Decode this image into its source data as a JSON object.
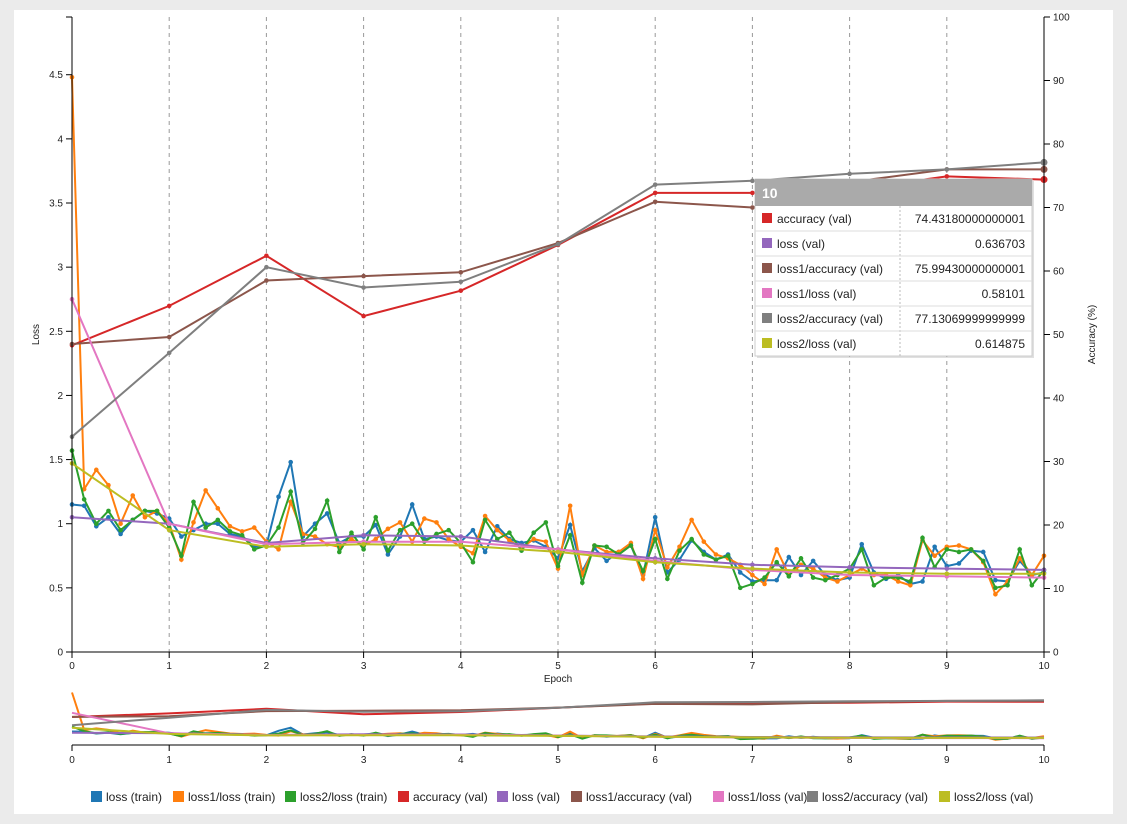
{
  "chart_data": {
    "type": "line",
    "xlabel": "Epoch",
    "ylabel_left": "Loss",
    "ylabel_right": "Accuracy (%)",
    "xlim": [
      0,
      10
    ],
    "ylim_left": [
      0,
      4.95
    ],
    "ylim_right": [
      0,
      100
    ],
    "x_ticks": [
      "0",
      "1",
      "2",
      "3",
      "4",
      "5",
      "6",
      "7",
      "8",
      "9",
      "10"
    ],
    "y_left_ticks": [
      "0",
      "0.5",
      "1",
      "1.5",
      "2",
      "2.5",
      "3",
      "3.5",
      "4",
      "4.5"
    ],
    "y_right_ticks": [
      "0",
      "10",
      "20",
      "30",
      "40",
      "50",
      "60",
      "70",
      "80",
      "90",
      "100"
    ],
    "grid": "vertical dashed lines at each epoch",
    "legend_position": "bottom",
    "series": [
      {
        "name": "loss (train)",
        "axis": "left",
        "color": "#1f77b4",
        "x": [
          0,
          0.125,
          0.25,
          0.375,
          0.5,
          0.625,
          0.75,
          0.875,
          1,
          1.125,
          1.25,
          1.375,
          1.5,
          1.625,
          1.75,
          1.875,
          2,
          2.125,
          2.25,
          2.375,
          2.5,
          2.625,
          2.75,
          2.875,
          3,
          3.125,
          3.25,
          3.375,
          3.5,
          3.625,
          3.75,
          3.875,
          4,
          4.125,
          4.25,
          4.375,
          4.5,
          4.625,
          4.75,
          4.875,
          5,
          5.125,
          5.25,
          5.375,
          5.5,
          5.625,
          5.75,
          5.875,
          6,
          6.125,
          6.25,
          6.375,
          6.5,
          6.625,
          6.75,
          6.875,
          7,
          7.125,
          7.25,
          7.375,
          7.5,
          7.625,
          7.75,
          7.875,
          8,
          8.125,
          8.25,
          8.375,
          8.5,
          8.625,
          8.75,
          8.875,
          9,
          9.125,
          9.25,
          9.375,
          9.5,
          9.625,
          9.75,
          9.875,
          10
        ],
        "y": [
          1.15,
          1.14,
          0.98,
          1.05,
          0.92,
          1.03,
          1.1,
          1.08,
          1.04,
          0.9,
          0.95,
          1.0,
          1.0,
          0.92,
          0.9,
          0.82,
          0.83,
          1.21,
          1.48,
          0.9,
          1.0,
          1.08,
          0.85,
          0.9,
          0.9,
          0.99,
          0.76,
          0.9,
          1.15,
          0.88,
          0.9,
          0.87,
          0.86,
          0.95,
          0.78,
          0.98,
          0.88,
          0.85,
          0.87,
          0.82,
          0.73,
          0.99,
          0.63,
          0.81,
          0.71,
          0.78,
          0.83,
          0.6,
          1.05,
          0.62,
          0.72,
          0.87,
          0.78,
          0.72,
          0.76,
          0.62,
          0.55,
          0.56,
          0.56,
          0.74,
          0.6,
          0.71,
          0.6,
          0.56,
          0.58,
          0.84,
          0.62,
          0.57,
          0.6,
          0.53,
          0.55,
          0.82,
          0.67,
          0.69,
          0.79,
          0.78,
          0.56,
          0.55,
          0.71,
          0.6,
          0.62
        ]
      },
      {
        "name": "loss1/loss (train)",
        "axis": "left",
        "color": "#ff7f0e",
        "x": [
          0,
          0.125,
          0.25,
          0.375,
          0.5,
          0.625,
          0.75,
          0.875,
          1,
          1.125,
          1.25,
          1.375,
          1.5,
          1.625,
          1.75,
          1.875,
          2,
          2.125,
          2.25,
          2.375,
          2.5,
          2.625,
          2.75,
          2.875,
          3,
          3.125,
          3.25,
          3.375,
          3.5,
          3.625,
          3.75,
          3.875,
          4,
          4.125,
          4.25,
          4.375,
          4.5,
          4.625,
          4.75,
          4.875,
          5,
          5.125,
          5.25,
          5.375,
          5.5,
          5.625,
          5.75,
          5.875,
          6,
          6.125,
          6.25,
          6.375,
          6.5,
          6.625,
          6.75,
          6.875,
          7,
          7.125,
          7.25,
          7.375,
          7.5,
          7.625,
          7.75,
          7.875,
          8,
          8.125,
          8.25,
          8.375,
          8.5,
          8.625,
          8.75,
          8.875,
          9,
          9.125,
          9.25,
          9.375,
          9.5,
          9.625,
          9.75,
          9.875,
          10
        ],
        "y": [
          4.48,
          1.27,
          1.42,
          1.3,
          1.0,
          1.22,
          1.05,
          1.1,
          1.0,
          0.72,
          1.01,
          1.26,
          1.12,
          0.98,
          0.94,
          0.97,
          0.86,
          0.8,
          1.17,
          0.92,
          0.9,
          0.84,
          0.82,
          0.88,
          0.83,
          0.88,
          0.96,
          1.01,
          0.86,
          1.04,
          1.01,
          0.88,
          0.82,
          0.77,
          1.06,
          0.95,
          0.87,
          0.81,
          0.88,
          0.86,
          0.65,
          1.14,
          0.6,
          0.83,
          0.78,
          0.78,
          0.85,
          0.57,
          0.95,
          0.66,
          0.82,
          1.03,
          0.86,
          0.76,
          0.73,
          0.68,
          0.6,
          0.53,
          0.8,
          0.6,
          0.68,
          0.65,
          0.58,
          0.55,
          0.6,
          0.65,
          0.6,
          0.6,
          0.55,
          0.52,
          0.87,
          0.75,
          0.82,
          0.83,
          0.8,
          0.7,
          0.45,
          0.55,
          0.73,
          0.6,
          0.75
        ]
      },
      {
        "name": "loss2/loss (train)",
        "axis": "left",
        "color": "#2ca02c",
        "x": [
          0,
          0.125,
          0.25,
          0.375,
          0.5,
          0.625,
          0.75,
          0.875,
          1,
          1.125,
          1.25,
          1.375,
          1.5,
          1.625,
          1.75,
          1.875,
          2,
          2.125,
          2.25,
          2.375,
          2.5,
          2.625,
          2.75,
          2.875,
          3,
          3.125,
          3.25,
          3.375,
          3.5,
          3.625,
          3.75,
          3.875,
          4,
          4.125,
          4.25,
          4.375,
          4.5,
          4.625,
          4.75,
          4.875,
          5,
          5.125,
          5.25,
          5.375,
          5.5,
          5.625,
          5.75,
          5.875,
          6,
          6.125,
          6.25,
          6.375,
          6.5,
          6.625,
          6.75,
          6.875,
          7,
          7.125,
          7.25,
          7.375,
          7.5,
          7.625,
          7.75,
          7.875,
          8,
          8.125,
          8.25,
          8.375,
          8.5,
          8.625,
          8.75,
          8.875,
          9,
          9.125,
          9.25,
          9.375,
          9.5,
          9.625,
          9.75,
          9.875,
          10
        ],
        "y": [
          1.57,
          1.19,
          1.0,
          1.1,
          0.95,
          1.03,
          1.1,
          1.1,
          0.97,
          0.75,
          1.17,
          0.97,
          1.03,
          0.94,
          0.91,
          0.8,
          0.83,
          0.97,
          1.25,
          0.85,
          0.96,
          1.18,
          0.78,
          0.93,
          0.8,
          1.05,
          0.79,
          0.95,
          1.0,
          0.86,
          0.92,
          0.95,
          0.85,
          0.7,
          1.03,
          0.88,
          0.93,
          0.79,
          0.93,
          1.01,
          0.67,
          0.91,
          0.54,
          0.83,
          0.82,
          0.76,
          0.83,
          0.63,
          0.88,
          0.57,
          0.79,
          0.88,
          0.76,
          0.72,
          0.75,
          0.5,
          0.53,
          0.58,
          0.7,
          0.59,
          0.73,
          0.58,
          0.56,
          0.6,
          0.65,
          0.8,
          0.52,
          0.58,
          0.58,
          0.55,
          0.89,
          0.66,
          0.8,
          0.78,
          0.8,
          0.71,
          0.5,
          0.52,
          0.8,
          0.52,
          0.64
        ]
      },
      {
        "name": "accuracy (val)",
        "axis": "right",
        "color": "#d62728",
        "x": [
          0,
          1,
          2,
          3,
          4,
          5,
          6,
          7,
          8,
          9,
          10
        ],
        "y": [
          48.3,
          54.5,
          62.4,
          52.9,
          56.9,
          64.1,
          72.3,
          72.3,
          72.8,
          74.9,
          74.4
        ]
      },
      {
        "name": "loss (val)",
        "axis": "left",
        "color": "#9467bd",
        "x": [
          0,
          1,
          2,
          3,
          4,
          5,
          6,
          7,
          8,
          9,
          10
        ],
        "y": [
          1.05,
          1.0,
          0.85,
          0.91,
          0.9,
          0.8,
          0.73,
          0.68,
          0.66,
          0.65,
          0.64
        ]
      },
      {
        "name": "loss1/accuracy (val)",
        "axis": "right",
        "color": "#8c564b",
        "x": [
          0,
          1,
          2,
          3,
          4,
          5,
          6,
          7,
          8,
          9,
          10
        ],
        "y": [
          48.5,
          49.6,
          58.5,
          59.2,
          59.8,
          64.4,
          70.9,
          70.0,
          74.0,
          76.0,
          76.0
        ]
      },
      {
        "name": "loss1/loss (val)",
        "axis": "left",
        "color": "#e377c2",
        "x": [
          0,
          1,
          2,
          3,
          4,
          5,
          6,
          7,
          8,
          9,
          10
        ],
        "y": [
          2.75,
          1.0,
          0.84,
          0.86,
          0.86,
          0.8,
          0.71,
          0.64,
          0.6,
          0.59,
          0.58
        ]
      },
      {
        "name": "loss2/accuracy (val)",
        "axis": "right",
        "color": "#7f7f7f",
        "x": [
          0,
          1,
          2,
          3,
          4,
          5,
          6,
          7,
          8,
          9,
          10
        ],
        "y": [
          33.9,
          47.1,
          60.6,
          57.4,
          58.3,
          64.2,
          73.6,
          74.2,
          75.3,
          76.0,
          77.1
        ]
      },
      {
        "name": "loss2/loss (val)",
        "axis": "left",
        "color": "#bcbd22",
        "x": [
          0,
          1,
          2,
          3,
          4,
          5,
          6,
          7,
          8,
          9,
          10
        ],
        "y": [
          1.47,
          0.95,
          0.82,
          0.84,
          0.83,
          0.78,
          0.7,
          0.65,
          0.62,
          0.61,
          0.61
        ]
      }
    ],
    "tooltip": {
      "title": "10",
      "rows": [
        {
          "name": "accuracy (val)",
          "value": "74.43180000000001",
          "color": "#d62728"
        },
        {
          "name": "loss (val)",
          "value": "0.636703",
          "color": "#9467bd"
        },
        {
          "name": "loss1/accuracy (val)",
          "value": "75.99430000000001",
          "color": "#8c564b"
        },
        {
          "name": "loss1/loss (val)",
          "value": "0.58101",
          "color": "#e377c2"
        },
        {
          "name": "loss2/accuracy (val)",
          "value": "77.13069999999999",
          "color": "#7f7f7f"
        },
        {
          "name": "loss2/loss (val)",
          "value": "0.614875",
          "color": "#bcbd22"
        }
      ]
    },
    "overview": {
      "x_ticks": [
        "0",
        "1",
        "2",
        "3",
        "4",
        "5",
        "6",
        "7",
        "8",
        "9",
        "10"
      ]
    }
  }
}
